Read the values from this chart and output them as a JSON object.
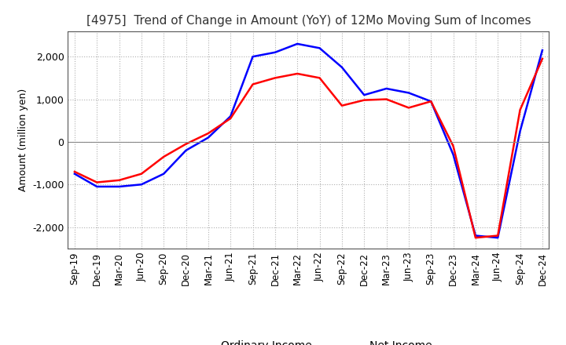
{
  "title": "[4975]  Trend of Change in Amount (YoY) of 12Mo Moving Sum of Incomes",
  "ylabel": "Amount (million yen)",
  "x_labels": [
    "Sep-19",
    "Dec-19",
    "Mar-20",
    "Jun-20",
    "Sep-20",
    "Dec-20",
    "Mar-21",
    "Jun-21",
    "Sep-21",
    "Dec-21",
    "Mar-22",
    "Jun-22",
    "Sep-22",
    "Dec-22",
    "Mar-23",
    "Jun-23",
    "Sep-23",
    "Dec-23",
    "Mar-24",
    "Jun-24",
    "Sep-24",
    "Dec-24"
  ],
  "ordinary_income": [
    -750,
    -1050,
    -1050,
    -1000,
    -750,
    -200,
    100,
    600,
    2000,
    2100,
    2300,
    2200,
    1750,
    1100,
    1250,
    1150,
    950,
    -300,
    -2200,
    -2250,
    250,
    2150
  ],
  "net_income": [
    -700,
    -950,
    -900,
    -750,
    -350,
    -50,
    200,
    550,
    1350,
    1500,
    1600,
    1500,
    850,
    980,
    1000,
    800,
    950,
    -100,
    -2250,
    -2200,
    750,
    1950
  ],
  "ordinary_color": "#0000ff",
  "net_color": "#ff0000",
  "ylim": [
    -2500,
    2600
  ],
  "yticks": [
    -2000,
    -1000,
    0,
    1000,
    2000
  ],
  "background_color": "#ffffff",
  "grid_color": "#b0b0b0",
  "title_fontsize": 11,
  "legend_fontsize": 10
}
